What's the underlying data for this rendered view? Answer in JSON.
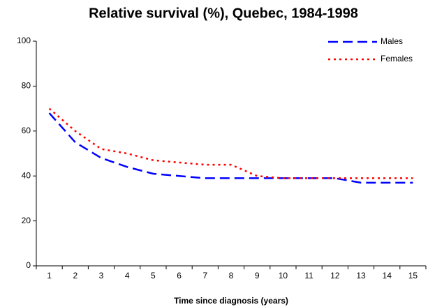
{
  "chart_data": {
    "type": "line",
    "title": "Relative survival (%), Quebec, 1984-1998",
    "x_label": "Time since diagnosis (years)",
    "categories": [
      1,
      2,
      3,
      4,
      5,
      6,
      7,
      8,
      9,
      10,
      11,
      12,
      13,
      14,
      15
    ],
    "series": [
      {
        "name": "Males",
        "color": "#0000ff",
        "values": [
          68,
          55,
          48,
          44,
          41,
          40,
          39,
          39,
          39,
          39,
          39,
          39,
          37,
          37,
          37
        ]
      },
      {
        "name": "Females",
        "color": "#ff0000",
        "values": [
          70,
          60,
          52,
          50,
          47,
          46,
          45,
          45,
          40,
          39,
          39,
          39,
          39,
          39,
          39
        ]
      }
    ],
    "ylim": [
      0,
      100
    ],
    "yticks": [
      0,
      20,
      40,
      60,
      80,
      100
    ],
    "legend": "top-right",
    "grid": false
  }
}
